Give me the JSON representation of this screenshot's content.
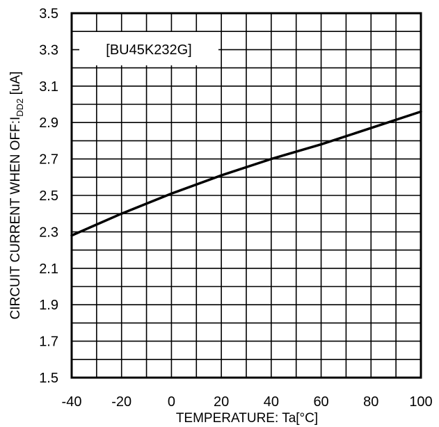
{
  "chart_data": {
    "type": "line",
    "title": "",
    "xlabel": "TEMPERATURE: Ta[°C]",
    "ylabel": {
      "main": "CIRCUIT CURRENT WHEN OFF:I",
      "subscript": "DD2",
      "unit": " [uA]"
    },
    "annotation": "[BU45K232G]",
    "xlim": [
      -40,
      100
    ],
    "ylim": [
      1.5,
      3.5
    ],
    "x_ticks": [
      -40,
      -20,
      0,
      20,
      40,
      60,
      80,
      100
    ],
    "x_tick_labels": [
      "-40",
      "-20",
      "0",
      "20",
      "40",
      "60",
      "80",
      "100"
    ],
    "y_ticks": [
      1.5,
      1.7,
      1.9,
      2.1,
      2.3,
      2.5,
      2.7,
      2.9,
      3.1,
      3.3,
      3.5
    ],
    "y_tick_labels": [
      "1.5",
      "1.7",
      "1.9",
      "2.1",
      "2.3",
      "2.5",
      "2.7",
      "2.9",
      "3.1",
      "3.3",
      "3.5"
    ],
    "x_minor_step": 10,
    "y_minor_step": 0.1,
    "grid": true,
    "series": [
      {
        "x": [
          -40,
          -20,
          0,
          20,
          40,
          60,
          80,
          100
        ],
        "values": [
          2.28,
          2.4,
          2.51,
          2.61,
          2.7,
          2.78,
          2.87,
          2.96
        ]
      }
    ],
    "colors": {
      "line": "#000000",
      "grid": "#000000",
      "background": "#ffffff"
    }
  }
}
